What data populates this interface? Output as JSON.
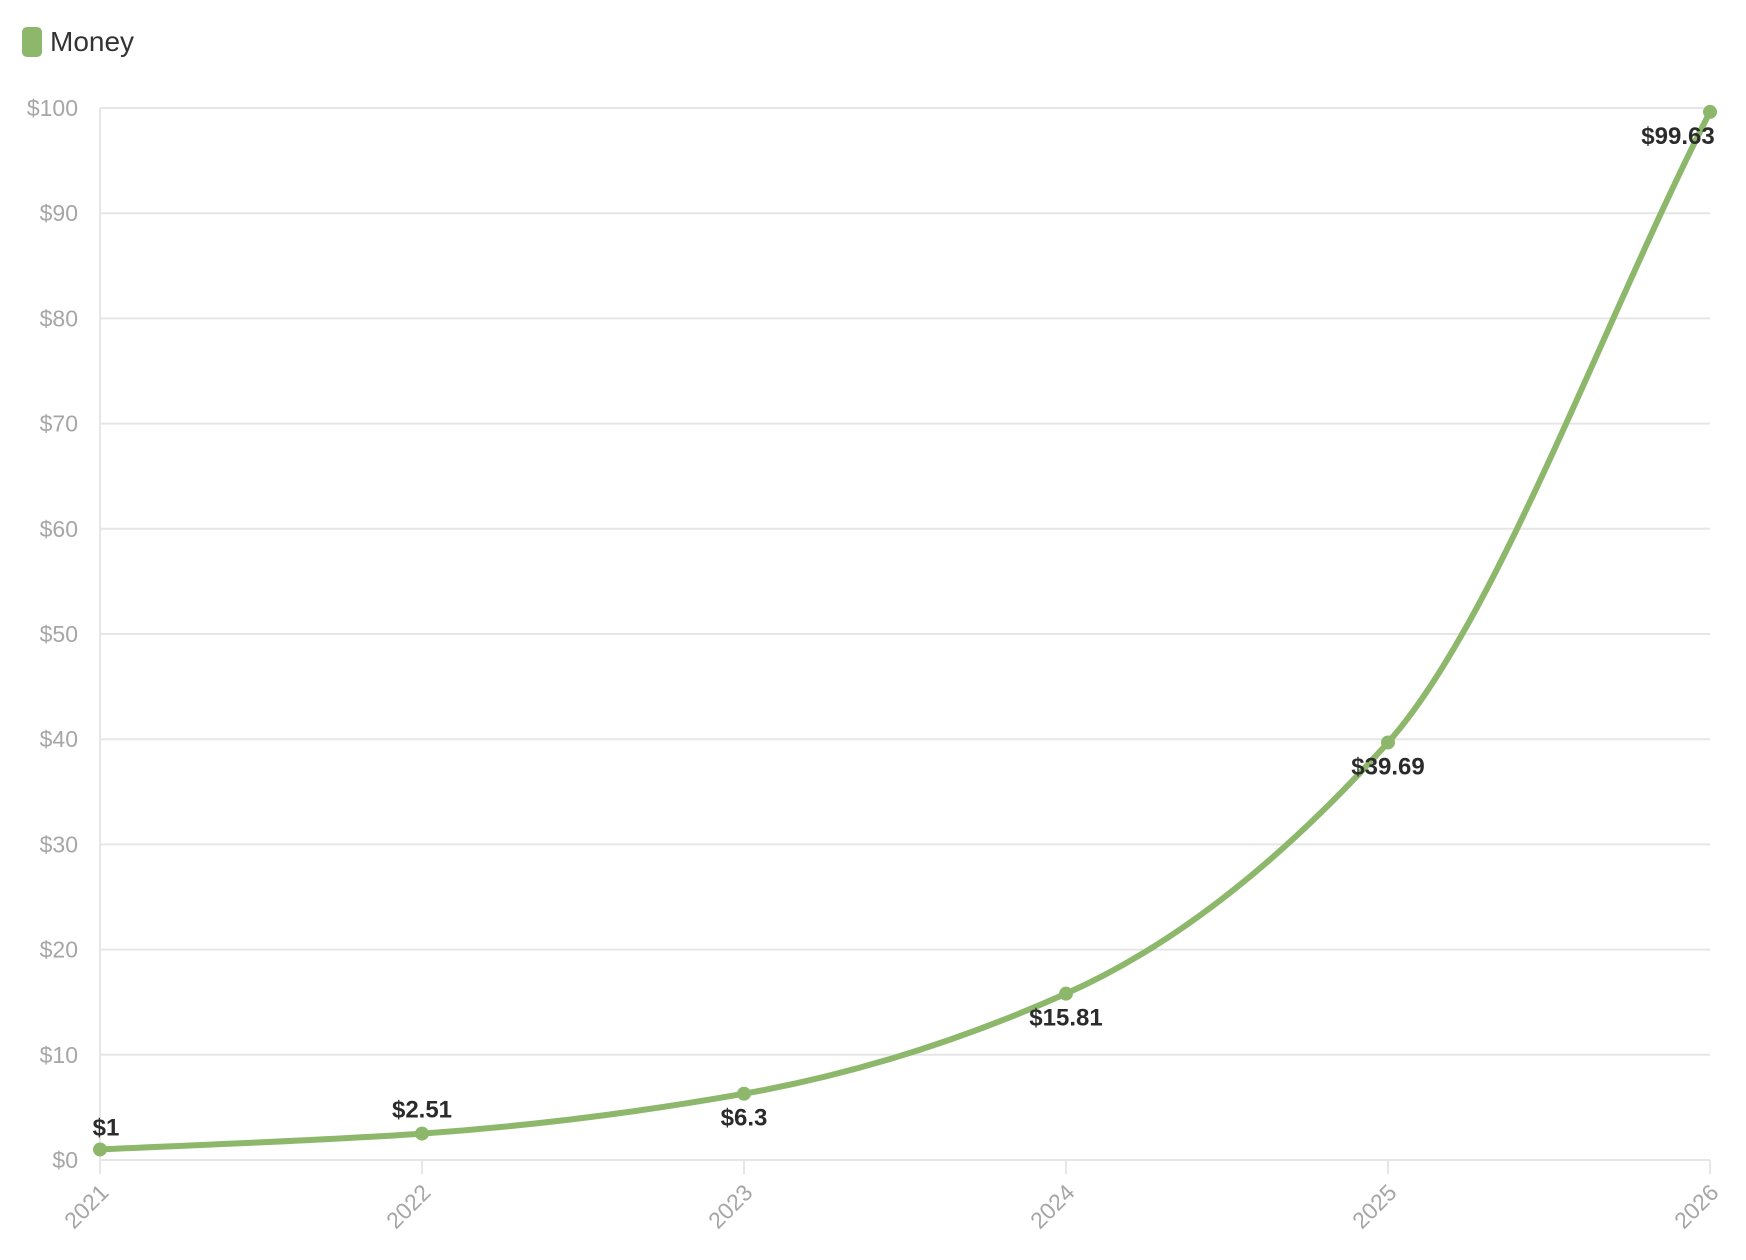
{
  "chart_data": {
    "type": "line",
    "x": [
      "2021",
      "2022",
      "2023",
      "2024",
      "2025",
      "2026"
    ],
    "series": [
      {
        "name": "Money",
        "values": [
          1,
          2.51,
          6.3,
          15.81,
          39.69,
          99.63
        ],
        "labels": [
          "$1",
          "$2.51",
          "$6.3",
          "$15.81",
          "$39.69",
          "$99.63"
        ],
        "color": "#8db86b"
      }
    ],
    "ylim": [
      0,
      100
    ],
    "yticks": [
      0,
      10,
      20,
      30,
      40,
      50,
      60,
      70,
      80,
      90,
      100
    ],
    "ytick_labels": [
      "$0",
      "$10",
      "$20",
      "$30",
      "$40",
      "$50",
      "$60",
      "$70",
      "$80",
      "$90",
      "$100"
    ],
    "grid": true,
    "legend": "top-left",
    "title": "",
    "xlabel": "",
    "ylabel": ""
  }
}
